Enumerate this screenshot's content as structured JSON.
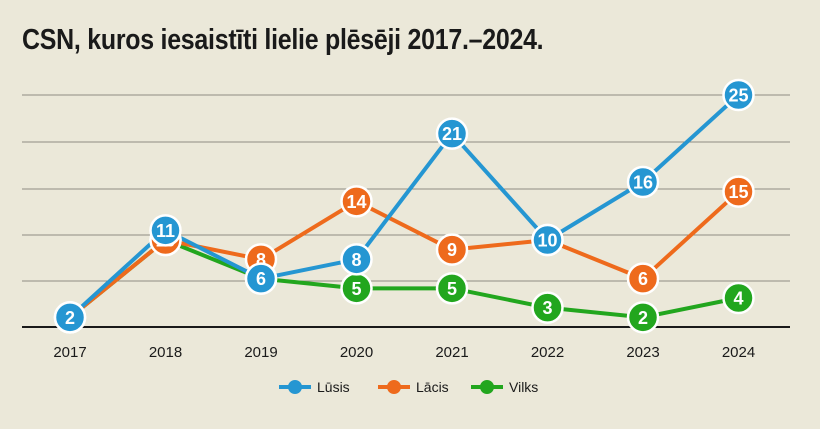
{
  "chart_data": {
    "type": "line",
    "title": "CSN, kuros iesaistīti lielie plēsēji 2017.–2024.",
    "categories": [
      "2017",
      "2018",
      "2019",
      "2020",
      "2021",
      "2022",
      "2023",
      "2024"
    ],
    "ylim": [
      0,
      25
    ],
    "grid": true,
    "legend": "bottom-center",
    "series": [
      {
        "name": "Lūsis",
        "color": "#2596d2",
        "values": [
          2,
          11,
          6,
          8,
          21,
          10,
          16,
          25
        ]
      },
      {
        "name": "Lācis",
        "color": "#ee6a1c",
        "values": [
          2,
          10,
          8,
          14,
          9,
          10,
          6,
          15
        ]
      },
      {
        "name": "Vilks",
        "color": "#22a61e",
        "values": [
          2,
          10,
          6,
          5,
          5,
          3,
          2,
          4
        ]
      }
    ]
  }
}
